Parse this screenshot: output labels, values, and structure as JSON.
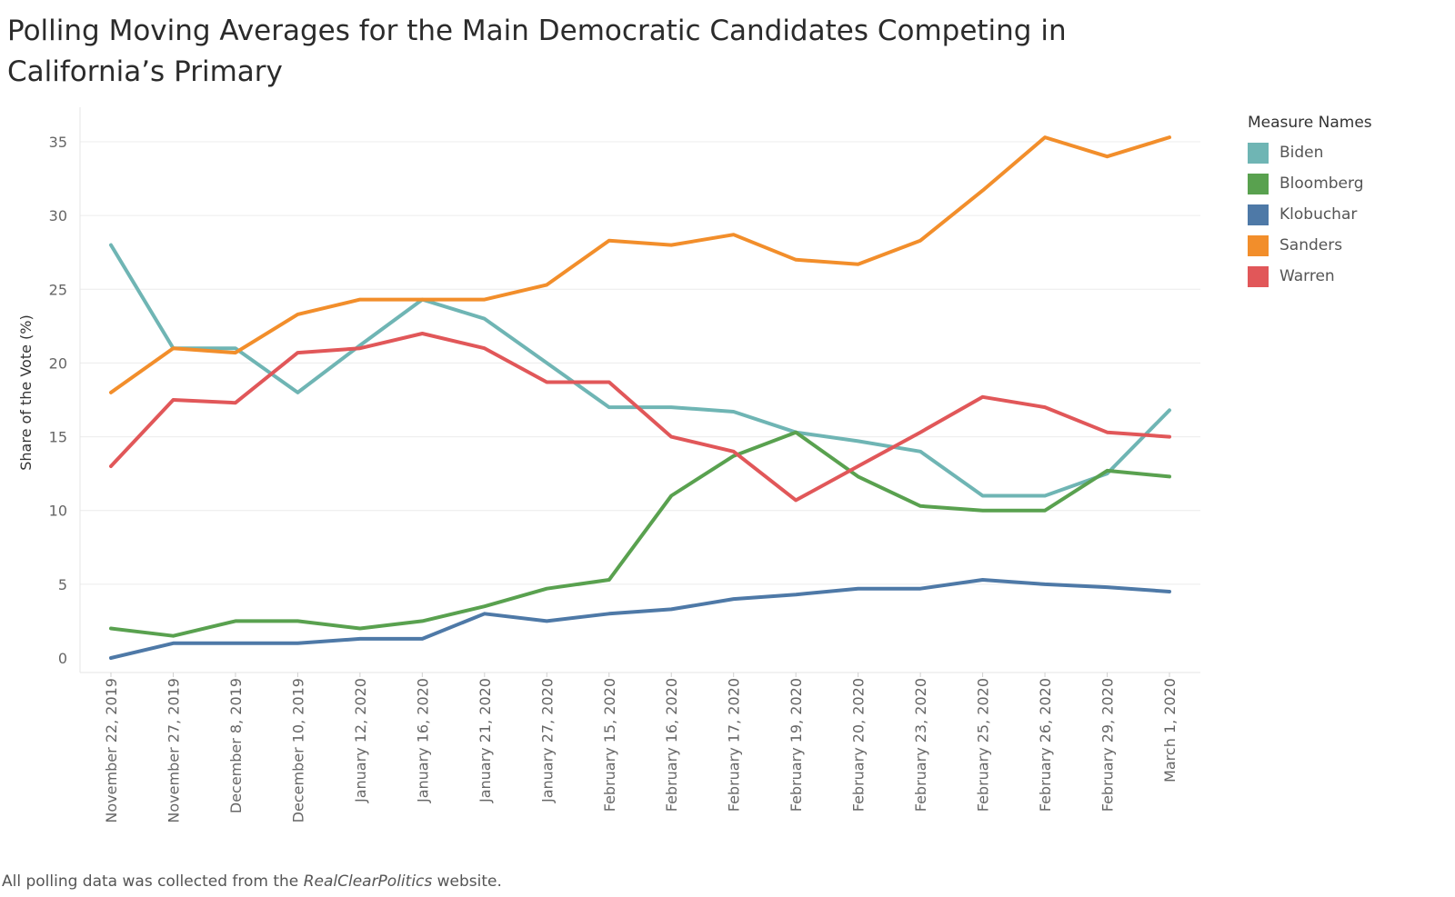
{
  "title": "Polling Moving Averages for the Main Democratic Candidates Competing in California’s Primary",
  "footnote": {
    "prefix": "All polling data was collected from the ",
    "source": "RealClearPolitics",
    "suffix": " website."
  },
  "legend": {
    "title": "Measure Names"
  },
  "chart_data": {
    "type": "line",
    "title": "Polling Moving Averages for the Main Democratic Candidates Competing in California’s Primary",
    "xlabel": "",
    "ylabel": "Share of the Vote (%)",
    "ylim": [
      0,
      35
    ],
    "yticks": [
      0,
      5,
      10,
      15,
      20,
      25,
      30,
      35
    ],
    "grid": true,
    "legend_position": "top-right",
    "x": [
      "November 22, 2019",
      "November 27, 2019",
      "December 8, 2019",
      "December 10, 2019",
      "January 12, 2020",
      "January 16, 2020",
      "January 21, 2020",
      "January 27, 2020",
      "February 15, 2020",
      "February 16, 2020",
      "February 17, 2020",
      "February 19, 2020",
      "February 20, 2020",
      "February 23, 2020",
      "February 25, 2020",
      "February 26, 2020",
      "February 29, 2020",
      "March 1, 2020"
    ],
    "series": [
      {
        "name": "Biden",
        "color": "#6fb5b4",
        "values": [
          28,
          21,
          21,
          18,
          21.2,
          24.3,
          23,
          20,
          17,
          17,
          16.7,
          15.3,
          14.7,
          14,
          11,
          11,
          12.5,
          16.8
        ]
      },
      {
        "name": "Bloomberg",
        "color": "#59a14f",
        "values": [
          2,
          1.5,
          2.5,
          2.5,
          2,
          2.5,
          3.5,
          4.7,
          5.3,
          11,
          13.7,
          15.3,
          12.3,
          10.3,
          10,
          10,
          12.7,
          12.3
        ]
      },
      {
        "name": "Klobuchar",
        "color": "#4e79a7",
        "values": [
          0,
          1,
          1,
          1,
          1.3,
          1.3,
          3,
          2.5,
          3,
          3.3,
          4,
          4.3,
          4.7,
          4.7,
          5.3,
          5,
          4.8,
          4.5
        ]
      },
      {
        "name": "Sanders",
        "color": "#f28e2b",
        "values": [
          18,
          21,
          20.7,
          23.3,
          24.3,
          24.3,
          24.3,
          25.3,
          28.3,
          28,
          28.7,
          27,
          26.7,
          28.3,
          31.7,
          35.3,
          34,
          35.3
        ]
      },
      {
        "name": "Warren",
        "color": "#e15759",
        "values": [
          13,
          17.5,
          17.3,
          20.7,
          21,
          22,
          21,
          18.7,
          18.7,
          15,
          14,
          10.7,
          13,
          15.3,
          17.7,
          17,
          15.3,
          15
        ]
      }
    ]
  }
}
